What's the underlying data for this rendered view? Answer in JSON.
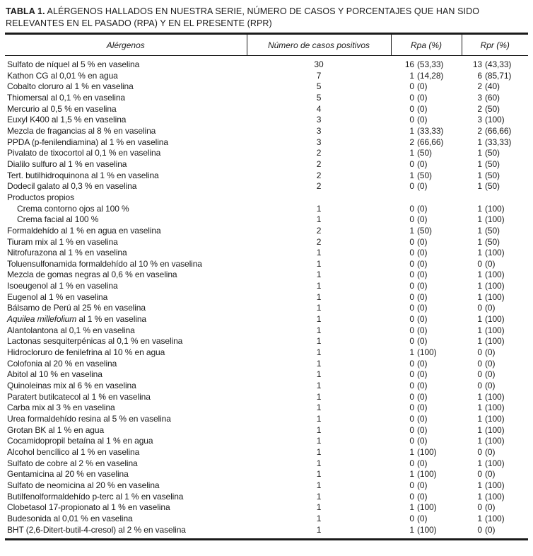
{
  "title": {
    "prefix": "TABLA 1.",
    "line1": " ALÉRGENOS HALLADOS EN NUESTRA SERIE, NÚMERO DE CASOS Y PORCENTAJES QUE HAN SIDO",
    "line2": "RELEVANTES EN EL PASADO (RPA) Y EN EL PRESENTE (RPR)"
  },
  "table": {
    "columns": [
      "Alérgenos",
      "Número de casos positivos",
      "Rpa (%)",
      "Rpr (%)"
    ],
    "rows": [
      {
        "name": "Sulfato de níquel al 5 % en vaselina",
        "n": "30",
        "rpaN": "16",
        "rpaP": "(53,33)",
        "rprN": "13",
        "rprP": "(43,33)"
      },
      {
        "name": "Kathon CG al 0,01 % en agua",
        "n": "7",
        "rpaN": "1",
        "rpaP": "(14,28)",
        "rprN": "6",
        "rprP": "(85,71)"
      },
      {
        "name": "Cobalto cloruro al 1 % en vaselina",
        "n": "5",
        "rpaN": "0",
        "rpaP": "(0)",
        "rprN": "2",
        "rprP": "(40)"
      },
      {
        "name": "Thiomersal al 0,1 % en vaselina",
        "n": "5",
        "rpaN": "0",
        "rpaP": "(0)",
        "rprN": "3",
        "rprP": "(60)"
      },
      {
        "name": "Mercurio al 0,5 % en vaselina",
        "n": "4",
        "rpaN": "0",
        "rpaP": "(0)",
        "rprN": "2",
        "rprP": "(50)"
      },
      {
        "name": "Euxyl K400 al 1,5 % en vaselina",
        "n": "3",
        "rpaN": "0",
        "rpaP": "(0)",
        "rprN": "3",
        "rprP": "(100)"
      },
      {
        "name": "Mezcla de fragancias al 8 % en vaselina",
        "n": "3",
        "rpaN": "1",
        "rpaP": "(33,33)",
        "rprN": "2",
        "rprP": "(66,66)"
      },
      {
        "name": "PPDA (p-fenilendiamina) al 1 % en vaselina",
        "n": "3",
        "rpaN": "2",
        "rpaP": "(66,66)",
        "rprN": "1",
        "rprP": "(33,33)"
      },
      {
        "name": "Pivalato de tixocortol al 0,1 % en vaselina",
        "n": "2",
        "rpaN": "1",
        "rpaP": "(50)",
        "rprN": "1",
        "rprP": "(50)"
      },
      {
        "name": "Dialilo sulfuro al 1 % en vaselina",
        "n": "2",
        "rpaN": "0",
        "rpaP": "(0)",
        "rprN": "1",
        "rprP": "(50)"
      },
      {
        "name": "Tert. butilhidroquinona al 1 % en vaselina",
        "n": "2",
        "rpaN": "1",
        "rpaP": "(50)",
        "rprN": "1",
        "rprP": "(50)"
      },
      {
        "name": "Dodecil galato al 0,3 % en vaselina",
        "n": "2",
        "rpaN": "0",
        "rpaP": "(0)",
        "rprN": "1",
        "rprP": "(50)"
      },
      {
        "name": "Productos propios",
        "n": "",
        "rpaN": "",
        "rpaP": "",
        "rprN": "",
        "rprP": ""
      },
      {
        "name": "Crema contorno ojos al 100 %",
        "indent": true,
        "n": "1",
        "rpaN": "0",
        "rpaP": "(0)",
        "rprN": "1",
        "rprP": "(100)"
      },
      {
        "name": "Crema facial al 100 %",
        "indent": true,
        "n": "1",
        "rpaN": "0",
        "rpaP": "(0)",
        "rprN": "1",
        "rprP": "(100)"
      },
      {
        "name": "Formaldehído al 1 % en agua en vaselina",
        "n": "2",
        "rpaN": "1",
        "rpaP": "(50)",
        "rprN": "1",
        "rprP": "(50)"
      },
      {
        "name": "Tiuram mix al 1 % en vaselina",
        "n": "2",
        "rpaN": "0",
        "rpaP": "(0)",
        "rprN": "1",
        "rprP": "(50)"
      },
      {
        "name": "Nitrofurazona al 1 % en vaselina",
        "n": "1",
        "rpaN": "0",
        "rpaP": "(0)",
        "rprN": "1",
        "rprP": "(100)"
      },
      {
        "name": "Toluensulfonamida formaldehído al 10 % en vaselina",
        "n": "1",
        "rpaN": "0",
        "rpaP": "(0)",
        "rprN": "0",
        "rprP": "(0)"
      },
      {
        "name": "Mezcla de gomas negras al 0,6 % en vaselina",
        "n": "1",
        "rpaN": "0",
        "rpaP": "(0)",
        "rprN": "1",
        "rprP": "(100)"
      },
      {
        "name": "Isoeugenol al 1 % en vaselina",
        "n": "1",
        "rpaN": "0",
        "rpaP": "(0)",
        "rprN": "1",
        "rprP": "(100)"
      },
      {
        "name": "Eugenol al 1 % en vaselina",
        "n": "1",
        "rpaN": "0",
        "rpaP": "(0)",
        "rprN": "1",
        "rprP": "(100)"
      },
      {
        "name": "Bálsamo de Perú al 25 % en vaselina",
        "n": "1",
        "rpaN": "0",
        "rpaP": "(0)",
        "rprN": "0",
        "rprP": "(0)"
      },
      {
        "nameItalic": "Aquilea millefolium",
        "name": " al 1 % en vaselina",
        "n": "1",
        "rpaN": "0",
        "rpaP": "(0)",
        "rprN": "1",
        "rprP": "(100)"
      },
      {
        "name": "Alantolantona al 0,1 % en vaselina",
        "n": "1",
        "rpaN": "0",
        "rpaP": "(0)",
        "rprN": "1",
        "rprP": "(100)"
      },
      {
        "name": "Lactonas sesquiterpénicas al 0,1 % en vaselina",
        "n": "1",
        "rpaN": "0",
        "rpaP": "(0)",
        "rprN": "1",
        "rprP": "(100)"
      },
      {
        "name": "Hidrocloruro de fenilefrina al 10 % en agua",
        "n": "1",
        "rpaN": "1",
        "rpaP": "(100)",
        "rprN": "0",
        "rprP": "(0)"
      },
      {
        "name": "Colofonia al 20 % en vaselina",
        "n": "1",
        "rpaN": "0",
        "rpaP": "(0)",
        "rprN": "0",
        "rprP": "(0)"
      },
      {
        "name": "Abitol al 10 % en vaselina",
        "n": "1",
        "rpaN": "0",
        "rpaP": "(0)",
        "rprN": "0",
        "rprP": "(0)"
      },
      {
        "name": "Quinoleinas mix al 6 % en vaselina",
        "n": "1",
        "rpaN": "0",
        "rpaP": "(0)",
        "rprN": "0",
        "rprP": "(0)"
      },
      {
        "name": "Paratert butilcatecol al 1 % en vaselina",
        "n": "1",
        "rpaN": "0",
        "rpaP": "(0)",
        "rprN": "1",
        "rprP": "(100)"
      },
      {
        "name": "Carba mix al 3 % en vaselina",
        "n": "1",
        "rpaN": "0",
        "rpaP": "(0)",
        "rprN": "1",
        "rprP": "(100)"
      },
      {
        "name": "Urea formaldehído resina al 5 % en vaselina",
        "n": "1",
        "rpaN": "0",
        "rpaP": "(0)",
        "rprN": "1",
        "rprP": "(100)"
      },
      {
        "name": "Grotan BK al 1 % en agua",
        "n": "1",
        "rpaN": "0",
        "rpaP": "(0)",
        "rprN": "1",
        "rprP": "(100)"
      },
      {
        "name": "Cocamidopropil betaína al 1 % en agua",
        "n": "1",
        "rpaN": "0",
        "rpaP": "(0)",
        "rprN": "1",
        "rprP": "(100)"
      },
      {
        "name": "Alcohol bencílico al 1 % en vaselina",
        "n": "1",
        "rpaN": "1",
        "rpaP": "(100)",
        "rprN": "0",
        "rprP": "(0)"
      },
      {
        "name": "Sulfato de cobre al 2 % en vaselina",
        "n": "1",
        "rpaN": "0",
        "rpaP": "(0)",
        "rprN": "1",
        "rprP": "(100)"
      },
      {
        "name": "Gentamicina al 20 % en vaselina",
        "n": "1",
        "rpaN": "1",
        "rpaP": "(100)",
        "rprN": "0",
        "rprP": "(0)"
      },
      {
        "name": "Sulfato de neomicina al 20 % en vaselina",
        "n": "1",
        "rpaN": "0",
        "rpaP": "(0)",
        "rprN": "1",
        "rprP": "(100)"
      },
      {
        "name": "Butilfenolformaldehído p-terc al 1 % en vaselina",
        "n": "1",
        "rpaN": "0",
        "rpaP": "(0)",
        "rprN": "1",
        "rprP": "(100)"
      },
      {
        "name": "Clobetasol 17-propionato al 1 % en vaselina",
        "n": "1",
        "rpaN": "1",
        "rpaP": "(100)",
        "rprN": "0",
        "rprP": "(0)"
      },
      {
        "name": "Budesonida al 0,01 % en vaselina",
        "n": "1",
        "rpaN": "0",
        "rpaP": "(0)",
        "rprN": "1",
        "rprP": "(100)"
      },
      {
        "name": "BHT (2,6-Ditert-butil-4-cresol) al 2 % en vaselina",
        "n": "1",
        "rpaN": "1",
        "rpaP": "(100)",
        "rprN": "0",
        "rprP": "(0)"
      }
    ]
  },
  "colors": {
    "text": "#1a1a1a",
    "rule": "#1a1a1a",
    "background": "#ffffff"
  }
}
